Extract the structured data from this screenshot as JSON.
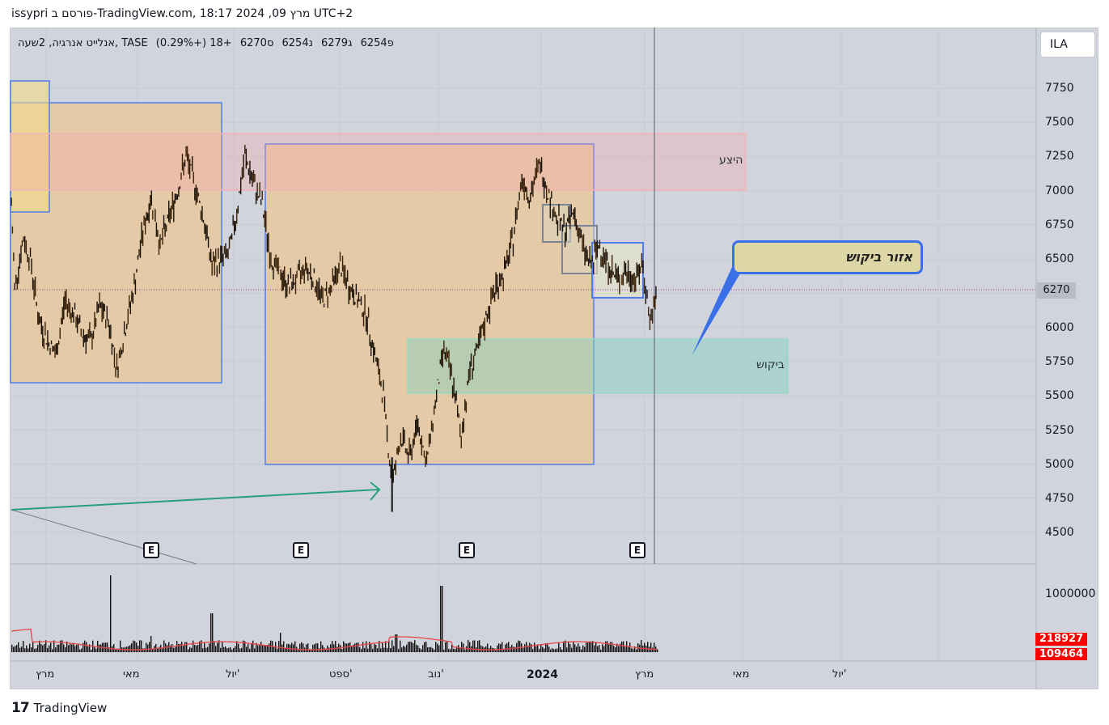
{
  "header": {
    "title": "issypri פורסם ב-TradingView.com, מרץ 09, 2024 18:17 UTC+2"
  },
  "legend": {
    "symbol": "אנלייט אנרגיה, 2שעה, TASE",
    "open": "פ6254",
    "high": "ג6279",
    "low": "נ6254",
    "close": "ס6270",
    "change": "+18 (+0.29%)"
  },
  "currency_button": "ILA",
  "price_axis": {
    "ticks": [
      "7750",
      "7500",
      "7250",
      "7000",
      "6750",
      "6500",
      "6270",
      "6000",
      "5750",
      "5500",
      "5250",
      "5000",
      "4750",
      "4500"
    ],
    "current_price": "6270"
  },
  "volume_axis": {
    "tick": "1000000",
    "last_volume": "218927",
    "avg_volume": "109464"
  },
  "time_axis": [
    "מרץ",
    "מאי",
    "יול'",
    "ספט'",
    "נוב'",
    "2024",
    "מרץ",
    "מאי",
    "יול'"
  ],
  "annotations": {
    "supply_label": "היצע",
    "demand_label": "ביקוש",
    "callout": "אזור ביקוש",
    "earnings_marker": "E"
  },
  "footer": {
    "brand": "TradingView",
    "logo_icon": "tradingview-logo-icon"
  },
  "colors": {
    "background": "#d1d4dc",
    "candle": "#3b2208",
    "range_fill": "#f0c48a",
    "range_border": "#4f7ee8",
    "supply_fill": "#f7c6c6",
    "demand_fill": "#9fd8c8",
    "callout_fill": "#ddd6a7",
    "arrow": "#26a17b",
    "volume_ma": "#e8474a",
    "volume_tag": "#ff0000"
  },
  "chart_data": {
    "type": "candlestick",
    "symbol": "אנלייט אנרגיה",
    "exchange": "TASE",
    "interval": "2שעה",
    "ylim": [
      4300,
      7950
    ],
    "series": [
      {
        "points": [
          [
            "2023-03-01",
            6900
          ],
          [
            "2023-03-03",
            6300
          ],
          [
            "2023-03-08",
            6650
          ],
          [
            "2023-03-12",
            6500
          ],
          [
            "2023-03-17",
            6050
          ],
          [
            "2023-03-22",
            5900
          ],
          [
            "2023-03-27",
            5800
          ],
          [
            "2023-04-01",
            6200
          ],
          [
            "2023-04-06",
            6100
          ],
          [
            "2023-04-11",
            5950
          ],
          [
            "2023-04-16",
            5900
          ],
          [
            "2023-04-21",
            6150
          ],
          [
            "2023-04-26",
            6050
          ],
          [
            "2023-05-01",
            5700
          ],
          [
            "2023-05-06",
            6000
          ],
          [
            "2023-05-11",
            6300
          ],
          [
            "2023-05-16",
            6700
          ],
          [
            "2023-05-21",
            6950
          ],
          [
            "2023-05-26",
            6600
          ],
          [
            "2023-05-31",
            6800
          ],
          [
            "2023-06-05",
            7000
          ],
          [
            "2023-06-10",
            7250
          ],
          [
            "2023-06-15",
            7050
          ],
          [
            "2023-06-20",
            6800
          ],
          [
            "2023-06-25",
            6450
          ],
          [
            "2023-06-30",
            6500
          ],
          [
            "2023-07-05",
            6550
          ],
          [
            "2023-07-10",
            6900
          ],
          [
            "2023-07-14",
            7250
          ],
          [
            "2023-07-19",
            7050
          ],
          [
            "2023-07-24",
            6900
          ],
          [
            "2023-07-29",
            6500
          ],
          [
            "2023-08-03",
            6400
          ],
          [
            "2023-08-08",
            6300
          ],
          [
            "2023-08-13",
            6350
          ],
          [
            "2023-08-18",
            6450
          ],
          [
            "2023-08-23",
            6350
          ],
          [
            "2023-08-28",
            6200
          ],
          [
            "2023-09-02",
            6300
          ],
          [
            "2023-09-07",
            6450
          ],
          [
            "2023-09-12",
            6300
          ],
          [
            "2023-09-17",
            6200
          ],
          [
            "2023-09-22",
            6100
          ],
          [
            "2023-09-27",
            5800
          ],
          [
            "2023-10-02",
            5500
          ],
          [
            "2023-10-07",
            4850
          ],
          [
            "2023-10-12",
            5200
          ],
          [
            "2023-10-17",
            5050
          ],
          [
            "2023-10-22",
            5300
          ],
          [
            "2023-10-27",
            5000
          ],
          [
            "2023-11-01",
            5450
          ],
          [
            "2023-11-06",
            5850
          ],
          [
            "2023-11-11",
            5600
          ],
          [
            "2023-11-16",
            5200
          ],
          [
            "2023-11-21",
            5700
          ],
          [
            "2023-11-26",
            5850
          ],
          [
            "2023-12-01",
            6100
          ],
          [
            "2023-12-06",
            6300
          ],
          [
            "2023-12-11",
            6400
          ],
          [
            "2023-12-16",
            6650
          ],
          [
            "2023-12-21",
            7100
          ],
          [
            "2023-12-26",
            6950
          ],
          [
            "2023-12-31",
            7200
          ],
          [
            "2024-01-05",
            7000
          ],
          [
            "2024-01-10",
            6800
          ],
          [
            "2024-01-15",
            6700
          ],
          [
            "2024-01-20",
            6850
          ],
          [
            "2024-01-25",
            6600
          ],
          [
            "2024-01-30",
            6450
          ],
          [
            "2024-02-04",
            6600
          ],
          [
            "2024-02-09",
            6450
          ],
          [
            "2024-02-14",
            6350
          ],
          [
            "2024-02-19",
            6400
          ],
          [
            "2024-02-24",
            6350
          ],
          [
            "2024-02-29",
            6450
          ],
          [
            "2024-03-04",
            6050
          ],
          [
            "2024-03-07",
            6150
          ],
          [
            "2024-03-08",
            6270
          ]
        ]
      }
    ],
    "zones": {
      "supply": [
        7020,
        7420
      ],
      "demand": [
        5520,
        5920
      ]
    },
    "volume_ma_axis_label": "1000000"
  }
}
